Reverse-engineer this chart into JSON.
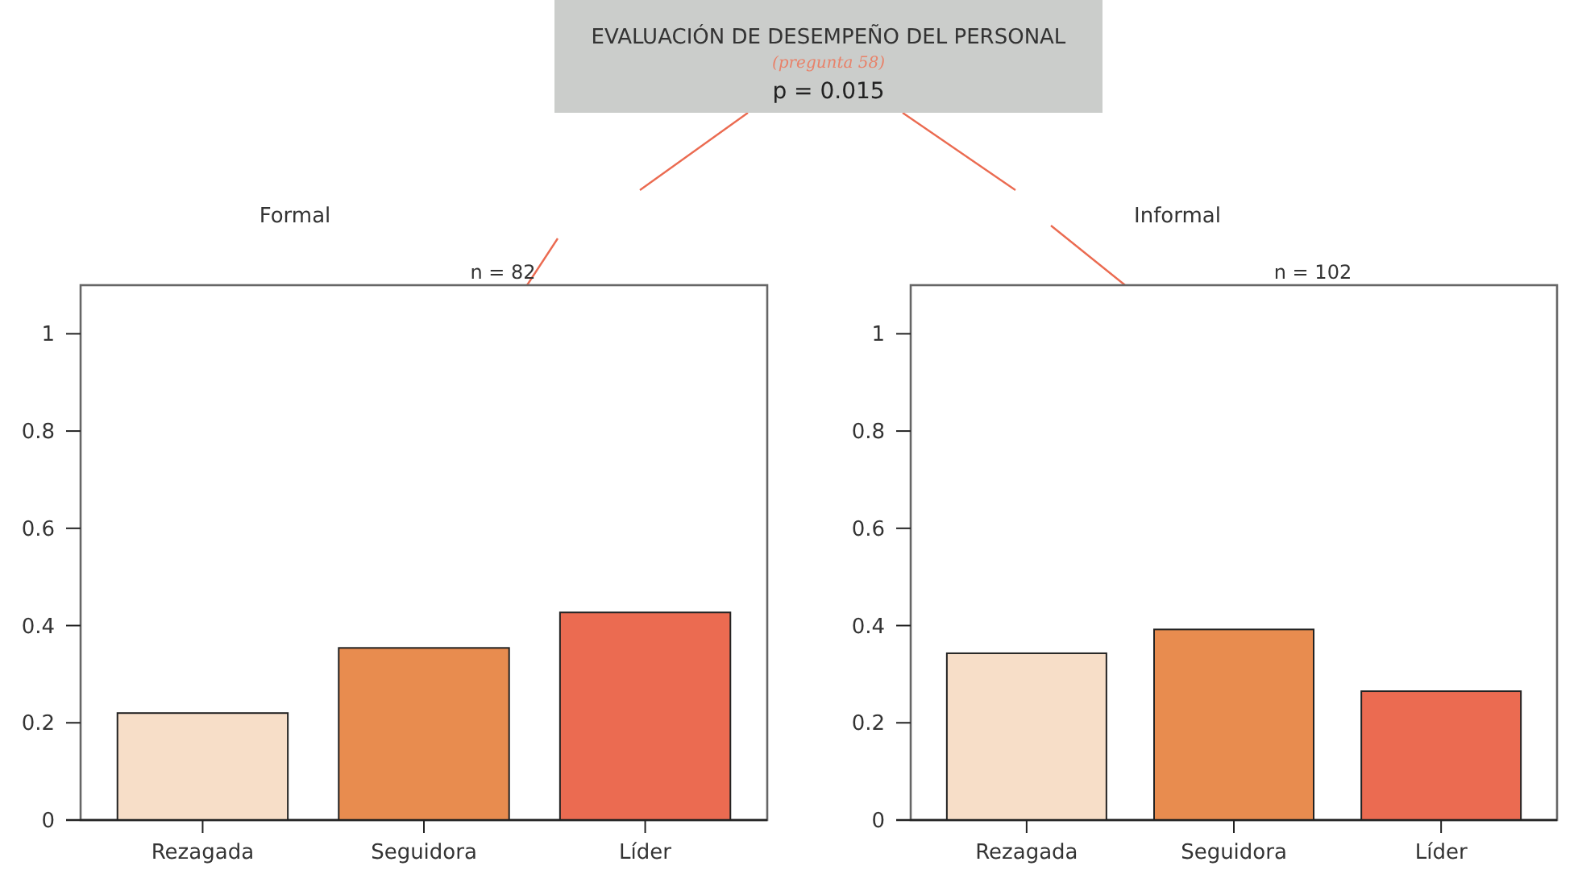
{
  "chart_data": [
    {
      "type": "bar",
      "title": "Formal",
      "subtitle": "n = 82",
      "annotations": [
        "EVALUACIÓN DE DESEMPEÑO DEL PERSONAL",
        "(pregunta 58)",
        "p = 0.015"
      ],
      "categories": [
        "Rezagada",
        "Seguidora",
        "Líder"
      ],
      "values": [
        0.22,
        0.354,
        0.427
      ],
      "colors": [
        "#f7dec8",
        "#e88c4f",
        "#eb6b51"
      ],
      "ylim": [
        0,
        1.1
      ],
      "yticks": [
        0,
        0.2,
        0.4,
        0.6,
        0.8,
        1
      ],
      "grid": false
    },
    {
      "type": "bar",
      "title": "Informal",
      "subtitle": "n = 102",
      "categories": [
        "Rezagada",
        "Seguidora",
        "Líder"
      ],
      "values": [
        0.343,
        0.392,
        0.265
      ],
      "colors": [
        "#f7dec8",
        "#e88c4f",
        "#eb6b51"
      ],
      "ylim": [
        0,
        1.1
      ],
      "yticks": [
        0,
        0.2,
        0.4,
        0.6,
        0.8,
        1
      ],
      "grid": false
    }
  ]
}
